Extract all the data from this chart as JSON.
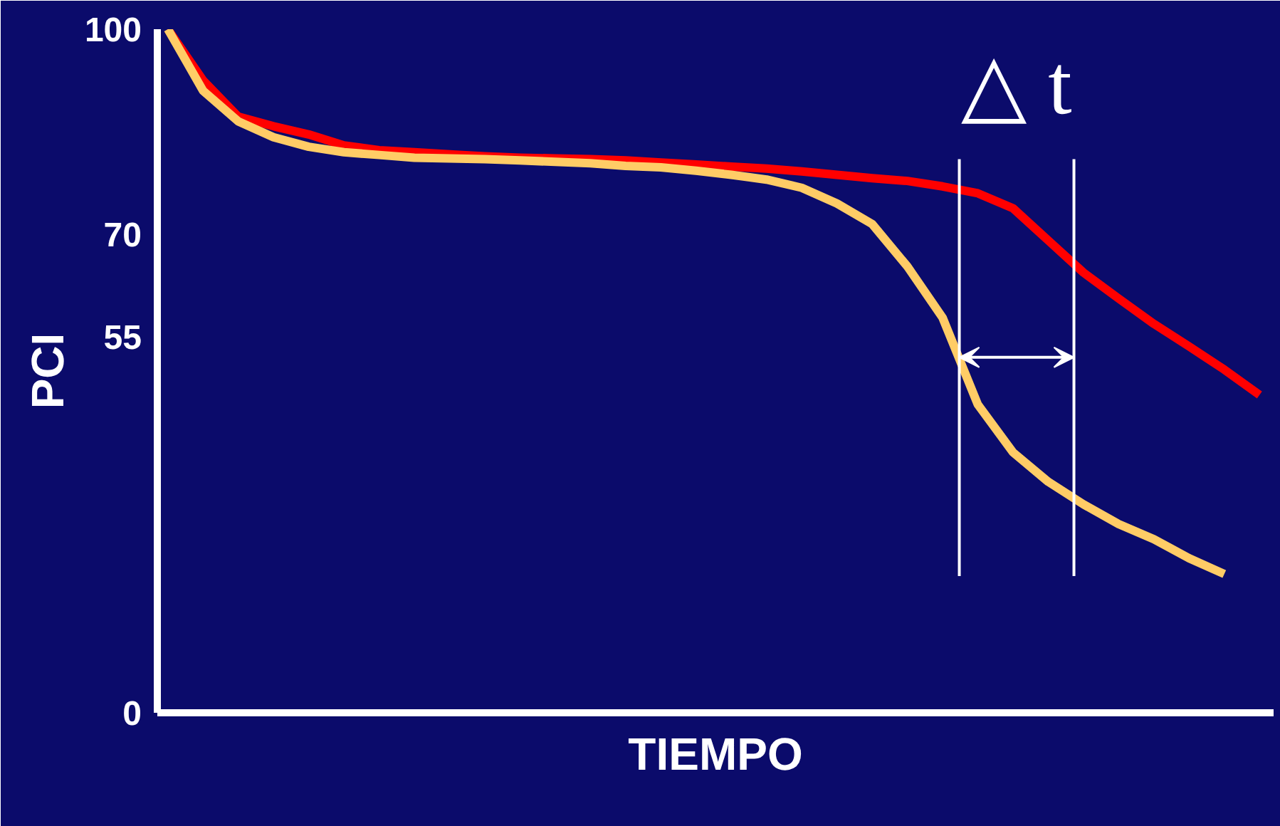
{
  "chart_data": {
    "type": "line",
    "xlabel": "TIEMPO",
    "ylabel": "PCI",
    "categories": [
      null,
      null,
      null,
      null,
      null,
      null,
      null,
      null,
      null,
      null,
      null,
      null,
      null,
      null,
      null,
      null,
      null,
      null,
      null,
      null,
      null,
      null,
      null,
      null,
      null,
      null,
      null,
      null,
      null,
      null,
      null,
      null
    ],
    "series": [
      {
        "color": "#ff0000",
        "values": [
          100,
          92.5,
          87.2,
          85.8,
          84.6,
          83,
          82.3,
          82,
          81.7,
          81.4,
          81.2,
          81.1,
          81,
          80.8,
          80.5,
          80.2,
          79.9,
          79.6,
          79.2,
          78.7,
          78.2,
          77.8,
          77,
          76,
          73.8,
          69.1,
          64.4,
          60.6,
          56.9,
          53.6,
          50.2,
          46.5
        ]
      },
      {
        "color": "#ffcc66",
        "values": [
          100,
          91,
          86.5,
          84.2,
          82.8,
          82,
          81.6,
          81.2,
          81.1,
          81,
          80.8,
          80.6,
          80.4,
          80,
          79.8,
          79.3,
          78.7,
          78,
          76.8,
          74.5,
          71.5,
          65.3,
          57.8,
          45.1,
          38.1,
          33.8,
          30.5,
          27.6,
          25.4,
          22.6,
          20.3,
          null
        ]
      }
    ],
    "ylim": [
      0,
      100
    ],
    "yticks": [
      0,
      55,
      70,
      100
    ],
    "tick_labels": "y",
    "grid": false,
    "marker": "none",
    "line_style": "solid",
    "annotations": [
      "△ t"
    ]
  }
}
